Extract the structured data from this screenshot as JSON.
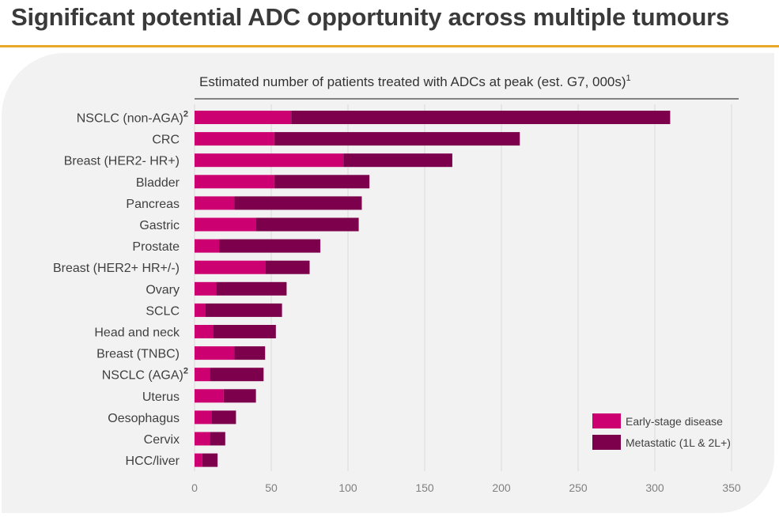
{
  "page": {
    "title": "Significant potential ADC opportunity across multiple tumours"
  },
  "chart_data": {
    "type": "bar",
    "orientation": "horizontal",
    "stacked": true,
    "title": "Estimated number of patients treated with ADCs at peak (est. G7, 000s)",
    "title_superscript": "1",
    "xlabel": "",
    "ylabel": "",
    "xlim": [
      0,
      350
    ],
    "xticks": [
      0,
      50,
      100,
      150,
      200,
      250,
      300,
      350
    ],
    "grid": true,
    "legend_position": "bottom-right",
    "categories": [
      {
        "label": "NSCLC (non-AGA)",
        "sup": "2"
      },
      {
        "label": "CRC",
        "sup": ""
      },
      {
        "label": "Breast (HER2- HR+)",
        "sup": ""
      },
      {
        "label": "Bladder",
        "sup": ""
      },
      {
        "label": "Pancreas",
        "sup": ""
      },
      {
        "label": "Gastric",
        "sup": ""
      },
      {
        "label": "Prostate",
        "sup": ""
      },
      {
        "label": "Breast (HER2+ HR+/-)",
        "sup": ""
      },
      {
        "label": "Ovary",
        "sup": ""
      },
      {
        "label": "SCLC",
        "sup": ""
      },
      {
        "label": "Head and neck",
        "sup": ""
      },
      {
        "label": "Breast (TNBC)",
        "sup": ""
      },
      {
        "label": "NSCLC (AGA)",
        "sup": "2"
      },
      {
        "label": "Uterus",
        "sup": ""
      },
      {
        "label": "Oesophagus",
        "sup": ""
      },
      {
        "label": "Cervix",
        "sup": ""
      },
      {
        "label": "HCC/liver",
        "sup": ""
      }
    ],
    "series": [
      {
        "name": "Early-stage disease",
        "color": "#cc0070",
        "values": [
          63,
          52,
          97,
          52,
          26,
          40,
          16,
          46,
          14,
          7,
          12,
          26,
          10,
          19,
          11,
          10,
          5
        ]
      },
      {
        "name": "Metastatic (1L & 2L+)",
        "color": "#7d004c",
        "values": [
          247,
          160,
          71,
          62,
          83,
          67,
          66,
          29,
          46,
          50,
          41,
          20,
          35,
          21,
          16,
          10,
          10
        ]
      }
    ]
  }
}
